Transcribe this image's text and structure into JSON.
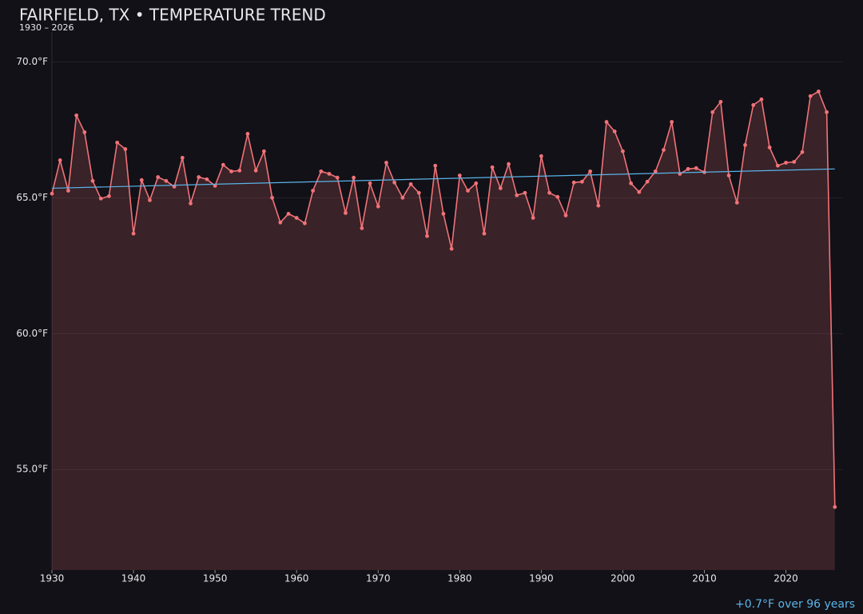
{
  "chart_data": {
    "type": "line",
    "title": "FAIRFIELD, TX • TEMPERATURE TREND",
    "subtitle": "1930 – 2026",
    "annotation": "+0.7°F over 96 years",
    "x": [
      1930,
      1931,
      1932,
      1933,
      1934,
      1935,
      1936,
      1937,
      1938,
      1939,
      1940,
      1941,
      1942,
      1943,
      1944,
      1945,
      1946,
      1947,
      1948,
      1949,
      1950,
      1951,
      1952,
      1953,
      1954,
      1955,
      1956,
      1957,
      1958,
      1959,
      1960,
      1961,
      1962,
      1963,
      1964,
      1965,
      1966,
      1967,
      1968,
      1969,
      1970,
      1971,
      1972,
      1973,
      1974,
      1975,
      1976,
      1977,
      1978,
      1979,
      1980,
      1981,
      1982,
      1983,
      1984,
      1985,
      1986,
      1987,
      1988,
      1989,
      1990,
      1991,
      1992,
      1993,
      1994,
      1995,
      1996,
      1997,
      1998,
      1999,
      2000,
      2001,
      2002,
      2003,
      2004,
      2005,
      2006,
      2007,
      2008,
      2009,
      2010,
      2011,
      2012,
      2013,
      2014,
      2015,
      2016,
      2017,
      2018,
      2019,
      2020,
      2021,
      2022,
      2023,
      2024,
      2025,
      2026
    ],
    "series": [
      {
        "color": "#f07378",
        "values": [
          65.15,
          66.38,
          65.26,
          68.03,
          67.41,
          65.62,
          64.97,
          65.06,
          67.03,
          66.79,
          63.68,
          65.65,
          64.91,
          65.76,
          65.62,
          65.41,
          66.47,
          64.79,
          65.76,
          65.68,
          65.44,
          66.21,
          65.97,
          66.0,
          67.35,
          66.0,
          66.71,
          65.0,
          64.09,
          64.41,
          64.26,
          64.06,
          65.26,
          65.97,
          65.88,
          65.74,
          64.44,
          65.74,
          63.88,
          65.53,
          64.68,
          66.29,
          65.56,
          65.0,
          65.5,
          65.18,
          63.59,
          66.18,
          64.41,
          63.12,
          65.82,
          65.26,
          65.53,
          63.68,
          66.12,
          65.35,
          66.24,
          65.09,
          65.18,
          64.26,
          66.53,
          65.18,
          65.03,
          64.35,
          65.56,
          65.59,
          65.97,
          64.71,
          67.79,
          67.44,
          66.71,
          65.53,
          65.21,
          65.59,
          65.97,
          66.76,
          67.79,
          65.88,
          66.06,
          66.09,
          65.94,
          68.15,
          68.53,
          65.82,
          64.82,
          66.94,
          68.41,
          68.62,
          66.85,
          66.18,
          66.29,
          66.32,
          66.68,
          68.74,
          68.91,
          68.15,
          53.62
        ]
      }
    ],
    "trend": {
      "color": "#5ab4e8",
      "x": [
        1930,
        2026
      ],
      "values": [
        65.35,
        66.06
      ]
    },
    "xlim": [
      1930,
      2027
    ],
    "ylim": [
      51.3,
      71.1
    ],
    "xticks": [
      1930,
      1940,
      1950,
      1960,
      1970,
      1980,
      1990,
      2000,
      2010,
      2020
    ],
    "yticks": [
      {
        "value": 55,
        "label": "55.0°F"
      },
      {
        "value": 60,
        "label": "60.0°F"
      },
      {
        "value": 65,
        "label": "65.0°F"
      },
      {
        "value": 70,
        "label": "70.0°F"
      }
    ],
    "grid": true
  }
}
